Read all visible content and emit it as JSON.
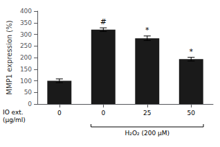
{
  "chart_data": {
    "type": "bar",
    "categories": [
      "0",
      "0",
      "25",
      "50"
    ],
    "values": [
      100,
      320,
      283,
      193
    ],
    "errors": [
      8,
      8,
      10,
      8
    ],
    "color": "#1a1a1a",
    "ylabel": "MMP1 expression (%)",
    "xlabel": "IO ext.\n(μg/ml)",
    "ylim": [
      0,
      400
    ],
    "yticks": [
      0,
      50,
      100,
      150,
      200,
      250,
      300,
      350,
      400
    ],
    "annotations": [
      null,
      "#",
      "*",
      "*"
    ],
    "brackets": [
      {
        "text": "H₂O₂ (200 μM)",
        "start": 1,
        "end": 3
      }
    ],
    "grid": false
  }
}
